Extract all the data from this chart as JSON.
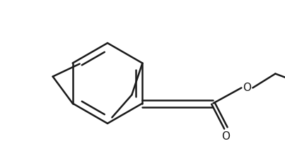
{
  "background_color": "#ffffff",
  "line_color": "#1a1a1a",
  "line_width": 1.8,
  "figsize": [
    4.03,
    2.24
  ],
  "dpi": 100
}
